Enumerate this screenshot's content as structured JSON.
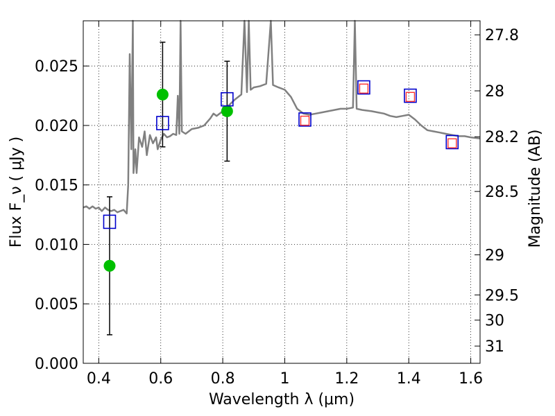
{
  "chart_data": {
    "type": "scatter",
    "xlabel": "Wavelength  λ (μm)",
    "ylabel": "Flux  F_ν  ( μJy )",
    "ylabel_right": "Magnitude (AB)",
    "xlim": [
      0.35,
      1.63
    ],
    "ylim": [
      0.0,
      0.0288
    ],
    "grid": true,
    "x_ticks": [
      {
        "v": 0.4,
        "label": "0.4"
      },
      {
        "v": 0.6,
        "label": "0.6"
      },
      {
        "v": 0.8,
        "label": "0.8"
      },
      {
        "v": 1.0,
        "label": "1"
      },
      {
        "v": 1.2,
        "label": "1.2"
      },
      {
        "v": 1.4,
        "label": "1.4"
      },
      {
        "v": 1.6,
        "label": "1.6"
      }
    ],
    "y_ticks": [
      {
        "v": 0.0,
        "label": "0.000"
      },
      {
        "v": 0.005,
        "label": "0.005"
      },
      {
        "v": 0.01,
        "label": "0.010"
      },
      {
        "v": 0.015,
        "label": "0.015"
      },
      {
        "v": 0.02,
        "label": "0.020"
      },
      {
        "v": 0.025,
        "label": "0.025"
      }
    ],
    "right_ticks": [
      {
        "label": "27.8",
        "flux": 0.02762
      },
      {
        "label": "28",
        "flux": 0.02291
      },
      {
        "label": "28.2",
        "flux": 0.01905
      },
      {
        "label": "28.5",
        "flux": 0.01445
      },
      {
        "label": "29",
        "flux": 0.00912
      },
      {
        "label": "29.5",
        "flux": 0.00575
      },
      {
        "label": "30",
        "flux": 0.00363
      },
      {
        "label": "31",
        "flux": 0.00145
      }
    ],
    "series": [
      {
        "kind": "spectrum",
        "color": "#808080",
        "points": [
          [
            0.35,
            0.0131
          ],
          [
            0.36,
            0.0132
          ],
          [
            0.37,
            0.013
          ],
          [
            0.38,
            0.0132
          ],
          [
            0.39,
            0.013
          ],
          [
            0.4,
            0.0131
          ],
          [
            0.41,
            0.0128
          ],
          [
            0.42,
            0.0131
          ],
          [
            0.43,
            0.0129
          ],
          [
            0.44,
            0.0128
          ],
          [
            0.45,
            0.0129
          ],
          [
            0.46,
            0.0127
          ],
          [
            0.47,
            0.0128
          ],
          [
            0.48,
            0.0129
          ],
          [
            0.49,
            0.0126
          ],
          [
            0.495,
            0.015
          ],
          [
            0.5,
            0.026
          ],
          [
            0.505,
            0.018
          ],
          [
            0.51,
            0.0288
          ],
          [
            0.512,
            0.016
          ],
          [
            0.518,
            0.018
          ],
          [
            0.522,
            0.016
          ],
          [
            0.53,
            0.019
          ],
          [
            0.54,
            0.0182
          ],
          [
            0.548,
            0.0195
          ],
          [
            0.555,
            0.0175
          ],
          [
            0.565,
            0.0192
          ],
          [
            0.575,
            0.0185
          ],
          [
            0.585,
            0.019
          ],
          [
            0.59,
            0.018
          ],
          [
            0.6,
            0.0188
          ],
          [
            0.61,
            0.0193
          ],
          [
            0.62,
            0.019
          ],
          [
            0.63,
            0.0191
          ],
          [
            0.64,
            0.0193
          ],
          [
            0.65,
            0.0192
          ],
          [
            0.655,
            0.0225
          ],
          [
            0.66,
            0.0193
          ],
          [
            0.664,
            0.0288
          ],
          [
            0.668,
            0.0195
          ],
          [
            0.68,
            0.0193
          ],
          [
            0.7,
            0.0197
          ],
          [
            0.72,
            0.0198
          ],
          [
            0.74,
            0.02
          ],
          [
            0.76,
            0.0206
          ],
          [
            0.77,
            0.021
          ],
          [
            0.78,
            0.0208
          ],
          [
            0.8,
            0.0212
          ],
          [
            0.82,
            0.0217
          ],
          [
            0.84,
            0.0222
          ],
          [
            0.86,
            0.0226
          ],
          [
            0.87,
            0.0288
          ],
          [
            0.878,
            0.0228
          ],
          [
            0.884,
            0.0288
          ],
          [
            0.89,
            0.023
          ],
          [
            0.9,
            0.0232
          ],
          [
            0.92,
            0.0233
          ],
          [
            0.94,
            0.0235
          ],
          [
            0.955,
            0.0288
          ],
          [
            0.962,
            0.0234
          ],
          [
            0.98,
            0.0232
          ],
          [
            1.0,
            0.023
          ],
          [
            1.02,
            0.0224
          ],
          [
            1.04,
            0.0214
          ],
          [
            1.06,
            0.021
          ],
          [
            1.08,
            0.0209
          ],
          [
            1.1,
            0.021
          ],
          [
            1.12,
            0.0211
          ],
          [
            1.14,
            0.0212
          ],
          [
            1.16,
            0.0213
          ],
          [
            1.18,
            0.0214
          ],
          [
            1.2,
            0.0214
          ],
          [
            1.22,
            0.0215
          ],
          [
            1.226,
            0.0288
          ],
          [
            1.232,
            0.0214
          ],
          [
            1.25,
            0.0213
          ],
          [
            1.28,
            0.0212
          ],
          [
            1.3,
            0.0211
          ],
          [
            1.32,
            0.021
          ],
          [
            1.34,
            0.0208
          ],
          [
            1.36,
            0.0207
          ],
          [
            1.38,
            0.0208
          ],
          [
            1.4,
            0.0209
          ],
          [
            1.42,
            0.0205
          ],
          [
            1.44,
            0.02
          ],
          [
            1.46,
            0.0196
          ],
          [
            1.48,
            0.0195
          ],
          [
            1.5,
            0.0194
          ],
          [
            1.52,
            0.0193
          ],
          [
            1.54,
            0.0192
          ],
          [
            1.56,
            0.0191
          ],
          [
            1.58,
            0.0191
          ],
          [
            1.6,
            0.019
          ],
          [
            1.63,
            0.0189
          ]
        ]
      },
      {
        "kind": "observed",
        "color": "#00c000",
        "points": [
          {
            "x": 0.435,
            "y": 0.0082,
            "err_lo": 0.0024,
            "err_hi": 0.014
          },
          {
            "x": 0.606,
            "y": 0.0226,
            "err_lo": 0.0182,
            "err_hi": 0.027
          },
          {
            "x": 0.814,
            "y": 0.0212,
            "err_lo": 0.017,
            "err_hi": 0.0254
          }
        ]
      },
      {
        "kind": "model_blue",
        "color": "#0000cc",
        "points": [
          [
            0.435,
            0.0119
          ],
          [
            0.606,
            0.0202
          ],
          [
            0.814,
            0.0222
          ],
          [
            1.065,
            0.0205
          ],
          [
            1.255,
            0.0232
          ],
          [
            1.405,
            0.0225
          ],
          [
            1.54,
            0.0186
          ]
        ]
      },
      {
        "kind": "model_red",
        "color": "#ff3030",
        "points": [
          [
            1.065,
            0.0204
          ],
          [
            1.255,
            0.0231
          ],
          [
            1.405,
            0.0224
          ],
          [
            1.54,
            0.0185
          ]
        ]
      }
    ]
  }
}
